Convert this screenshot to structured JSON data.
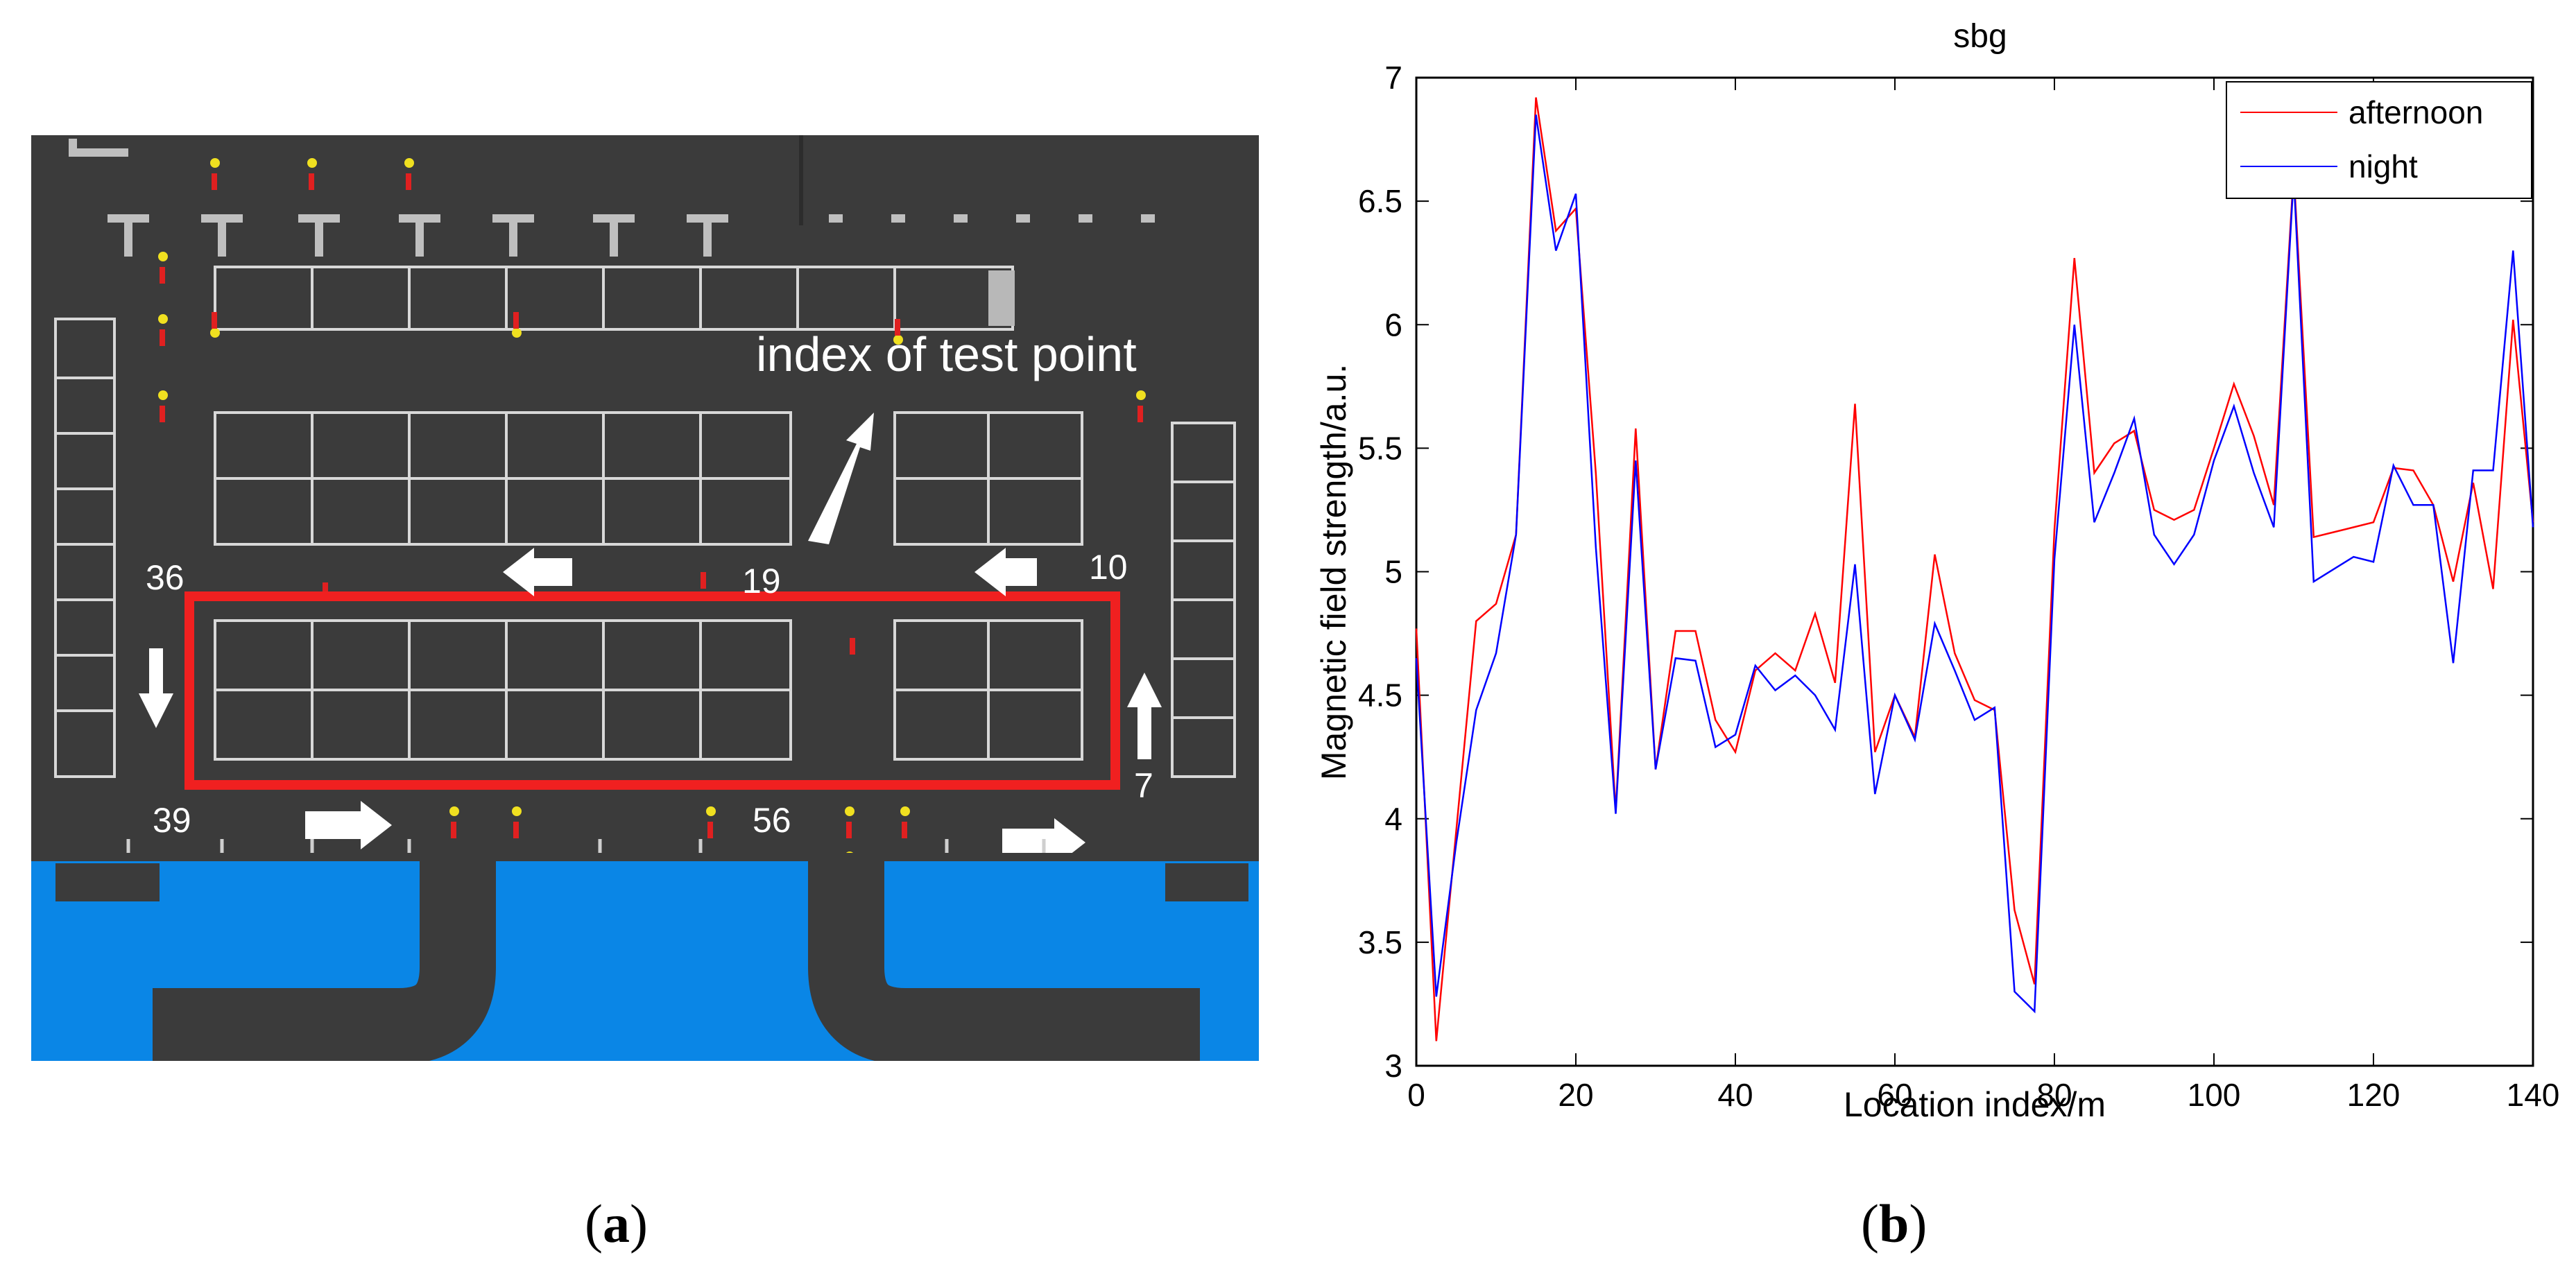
{
  "panels": {
    "a": {
      "caption_letter": "a"
    },
    "b": {
      "caption_letter": "b"
    }
  },
  "map": {
    "annotation": "index of test point",
    "point_labels": [
      "36",
      "19",
      "10",
      "39",
      "56",
      "7"
    ],
    "colors": {
      "ground": "#3a3a3a",
      "water": "#0a86e6",
      "highlight": "#f02020",
      "marker": "#f0e020"
    }
  },
  "chart_data": {
    "type": "line",
    "title": "sbg",
    "xlabel": "Location index/m",
    "ylabel": "Magnetic field strength/a.u.",
    "xlim": [
      0,
      140
    ],
    "ylim": [
      3,
      7
    ],
    "xticks": [
      0,
      20,
      40,
      60,
      80,
      100,
      120,
      140
    ],
    "yticks": [
      3,
      3.5,
      4,
      4.5,
      5,
      5.5,
      6,
      6.5,
      7
    ],
    "legend_position": "top-right",
    "x": [
      0,
      2.5,
      5,
      7.5,
      10,
      12.5,
      15,
      17.5,
      20,
      22.5,
      25,
      27.5,
      30,
      32.5,
      35,
      37.5,
      40,
      42.5,
      45,
      47.5,
      50,
      52.5,
      55,
      57.5,
      60,
      62.5,
      65,
      67.5,
      70,
      72.5,
      75,
      77.5,
      80,
      82.5,
      85,
      87.5,
      90,
      92.5,
      95,
      97.5,
      100,
      102.5,
      105,
      107.5,
      110,
      112.5,
      115,
      117.5,
      120,
      122.5,
      125,
      127.5,
      130,
      132.5,
      135,
      137.5,
      140
    ],
    "series": [
      {
        "name": "afternoon",
        "color": "#ff0000",
        "values": [
          4.77,
          3.1,
          3.95,
          4.8,
          4.87,
          5.15,
          6.92,
          6.38,
          6.47,
          5.4,
          4.03,
          5.58,
          4.2,
          4.76,
          4.76,
          4.4,
          4.27,
          4.6,
          4.67,
          4.6,
          4.83,
          4.55,
          5.68,
          4.27,
          4.5,
          4.33,
          5.07,
          4.67,
          4.48,
          4.44,
          3.63,
          3.33,
          5.17,
          6.27,
          5.4,
          5.52,
          5.57,
          5.25,
          5.21,
          5.25,
          5.5,
          5.76,
          5.55,
          5.27,
          6.62,
          5.14,
          5.16,
          5.18,
          5.2,
          5.42,
          5.41,
          5.27,
          4.96,
          5.36,
          4.93,
          6.02,
          5.2
        ]
      },
      {
        "name": "night",
        "color": "#0000ff",
        "values": [
          4.65,
          3.28,
          3.9,
          4.44,
          4.67,
          5.15,
          6.85,
          6.3,
          6.53,
          5.1,
          4.02,
          5.45,
          4.2,
          4.65,
          4.64,
          4.29,
          4.34,
          4.62,
          4.52,
          4.58,
          4.5,
          4.36,
          5.03,
          4.1,
          4.5,
          4.32,
          4.79,
          4.6,
          4.4,
          4.45,
          3.3,
          3.22,
          5.05,
          6.0,
          5.2,
          5.4,
          5.62,
          5.15,
          5.03,
          5.15,
          5.45,
          5.67,
          5.4,
          5.18,
          6.6,
          4.96,
          5.01,
          5.06,
          5.04,
          5.43,
          5.27,
          5.27,
          4.63,
          5.41,
          5.41,
          6.3,
          5.18
        ]
      }
    ]
  }
}
